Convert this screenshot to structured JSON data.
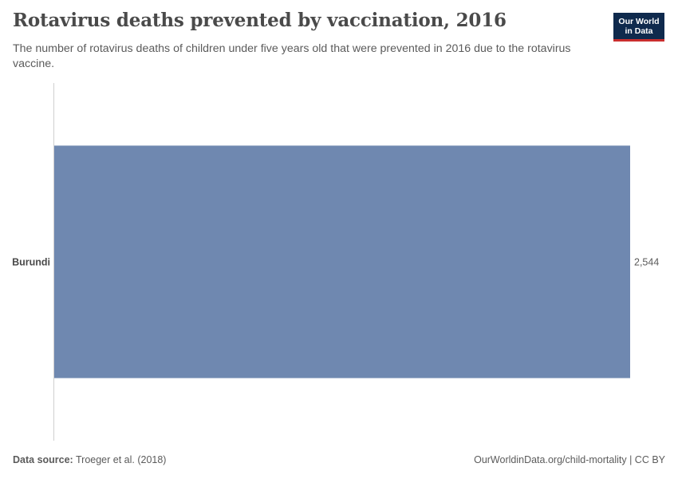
{
  "header": {
    "title": "Rotavirus deaths prevented by vaccination, 2016",
    "subtitle": "The number of rotavirus deaths of children under five years old that were prevented in 2016 due to the rotavirus vaccine."
  },
  "logo": {
    "line1": "Our World",
    "line2": "in Data"
  },
  "chart_data": {
    "type": "bar",
    "orientation": "horizontal",
    "categories": [
      "Burundi"
    ],
    "values": [
      2544
    ],
    "value_labels": [
      "2,544"
    ],
    "bar_color": "#6f88b0",
    "xlim": [
      0,
      2544
    ],
    "grid": false
  },
  "footer": {
    "source_label": "Data source:",
    "source_text": "Troeger et al. (2018)",
    "link_text": "OurWorldinData.org/child-mortality",
    "separator": " | ",
    "license": "CC BY"
  },
  "colors": {
    "bar": "#6f88b0",
    "axis": "#d0d0d0",
    "text": "#5b5b5b",
    "title": "#4a4a4a",
    "logo_bg": "#0f2a4d",
    "logo_accent": "#c92e2e"
  }
}
